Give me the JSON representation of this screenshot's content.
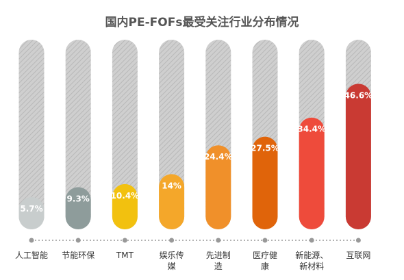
{
  "chart_data": {
    "type": "bar",
    "title": "国内PE-FOFs最受关注行业分布情况",
    "xlabel": "",
    "ylabel": "",
    "ylim": [
      0,
      100
    ],
    "categories": [
      "人工智能",
      "节能环保",
      "TMT",
      "娱乐传媒",
      "先进制造",
      "医疗健康",
      "新能源、新材料",
      "互联网"
    ],
    "category_lines": [
      [
        "人工智能"
      ],
      [
        "节能环保"
      ],
      [
        "TMT"
      ],
      [
        "娱乐传",
        "媒"
      ],
      [
        "先进制",
        "造"
      ],
      [
        "医疗健",
        "康"
      ],
      [
        "新能源、",
        "新材料"
      ],
      [
        "互联网"
      ]
    ],
    "values": [
      5.7,
      9.3,
      10.4,
      14,
      24.4,
      27.5,
      34.4,
      46.6
    ],
    "value_labels": [
      "5.7%",
      "9.3%",
      "10.4%",
      "14%",
      "24.4%",
      "27.5%",
      "34.4%",
      "46.6%"
    ],
    "colors": [
      "#c8cdcd",
      "#8e9c9b",
      "#f2c10f",
      "#f4a72a",
      "#f0902a",
      "#e0640a",
      "#ee4b3b",
      "#c93a33"
    ],
    "track_color": "#c9c9c9",
    "axis_color": "#999999",
    "grid": false,
    "legend": "none"
  }
}
